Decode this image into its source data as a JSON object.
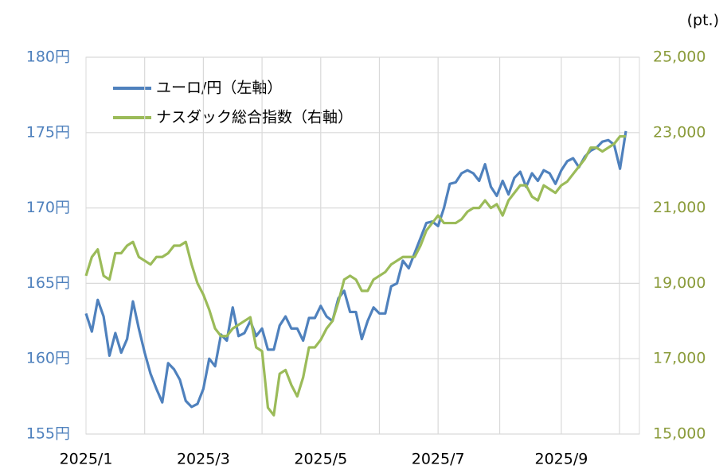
{
  "chart_data": {
    "type": "line",
    "unit_label": "(pt.)",
    "categories": [
      "2025/1",
      null,
      null,
      null,
      null,
      null,
      null,
      null,
      null,
      null,
      null,
      null,
      null,
      null,
      null,
      null,
      null,
      null,
      null,
      null,
      "2025/3",
      null,
      null,
      null,
      null,
      null,
      null,
      null,
      null,
      null,
      null,
      null,
      null,
      null,
      null,
      null,
      null,
      null,
      null,
      null,
      "2025/5",
      null,
      null,
      null,
      null,
      null,
      null,
      null,
      null,
      null,
      null,
      null,
      null,
      null,
      null,
      null,
      null,
      null,
      null,
      null,
      "2025/7",
      null,
      null,
      null,
      null,
      null,
      null,
      null,
      null,
      null,
      null,
      null,
      null,
      null,
      null,
      null,
      null,
      null,
      null,
      null,
      null,
      "2025/9",
      null,
      null,
      null,
      null,
      null,
      null,
      null,
      null,
      null,
      null,
      null
    ],
    "series": [
      {
        "name": "ユーロ/円（左軸）",
        "color": "#4f81bd",
        "values": [
          163,
          161.8,
          163.9,
          162.8,
          160.2,
          161.7,
          160.4,
          161.3,
          163.8,
          162,
          160.4,
          159,
          158,
          157.1,
          159.7,
          159.3,
          158.6,
          157.2,
          156.8,
          157,
          158,
          160,
          159.5,
          161.6,
          161.2,
          163.4,
          161.5,
          161.7,
          162.5,
          161.5,
          162,
          160.6,
          160.6,
          162.2,
          162.8,
          162,
          162,
          161.2,
          162.7,
          162.7,
          163.5,
          162.8,
          162.5,
          164,
          164.5,
          163.1,
          163.1,
          161.3,
          162.5,
          163.4,
          163,
          163,
          164.8,
          165,
          166.5,
          166,
          167,
          168,
          169,
          169.1,
          168.8,
          170,
          171.6,
          171.7,
          172.3,
          172.5,
          172.3,
          171.8,
          172.9,
          171.4,
          170.8,
          171.8,
          170.9,
          172,
          172.4,
          171.4,
          172.3,
          171.8,
          172.5,
          172.3,
          171.6,
          172.5,
          173.1,
          173.3,
          172.7,
          173.4,
          173.8,
          174,
          174.4,
          174.5,
          174.2,
          172.6,
          175.1
        ]
      },
      {
        "name": "ナスダック総合指数（右軸）",
        "color": "#9bbb59",
        "axis": "y2",
        "values": [
          19200,
          19700,
          19900,
          19200,
          19100,
          19800,
          19800,
          20000,
          20100,
          19700,
          19600,
          19500,
          19700,
          19700,
          19800,
          20000,
          20000,
          20100,
          19500,
          19000,
          18700,
          18300,
          17800,
          17600,
          17600,
          17800,
          17900,
          18000,
          18100,
          17300,
          17200,
          15700,
          15500,
          16600,
          16700,
          16300,
          16000,
          16500,
          17300,
          17300,
          17500,
          17800,
          18000,
          18500,
          19100,
          19200,
          19100,
          18800,
          18800,
          19100,
          19200,
          19300,
          19500,
          19600,
          19700,
          19700,
          19700,
          20000,
          20400,
          20600,
          20800,
          20600,
          20600,
          20600,
          20700,
          20900,
          21000,
          21000,
          21200,
          21000,
          21100,
          20800,
          21200,
          21400,
          21600,
          21600,
          21300,
          21200,
          21600,
          21500,
          21400,
          21600,
          21700,
          21900,
          22100,
          22300,
          22600,
          22600,
          22500,
          22600,
          22700,
          22900,
          22900
        ]
      }
    ],
    "ylim": [
      155,
      180
    ],
    "yticks": [
      {
        "value": 155,
        "label": "155円"
      },
      {
        "value": 160,
        "label": "160円"
      },
      {
        "value": 165,
        "label": "165円"
      },
      {
        "value": 170,
        "label": "170円"
      },
      {
        "value": 175,
        "label": "175円"
      },
      {
        "value": 180,
        "label": "180円"
      }
    ],
    "y2lim": [
      15000,
      25000
    ],
    "y2ticks": [
      {
        "value": 15000,
        "label": "15,000"
      },
      {
        "value": 17000,
        "label": "17,000"
      },
      {
        "value": 19000,
        "label": "19,000"
      },
      {
        "value": 21000,
        "label": "21,000"
      },
      {
        "value": 23000,
        "label": "23,000"
      },
      {
        "value": 25000,
        "label": "25,000"
      }
    ],
    "grid": true
  }
}
